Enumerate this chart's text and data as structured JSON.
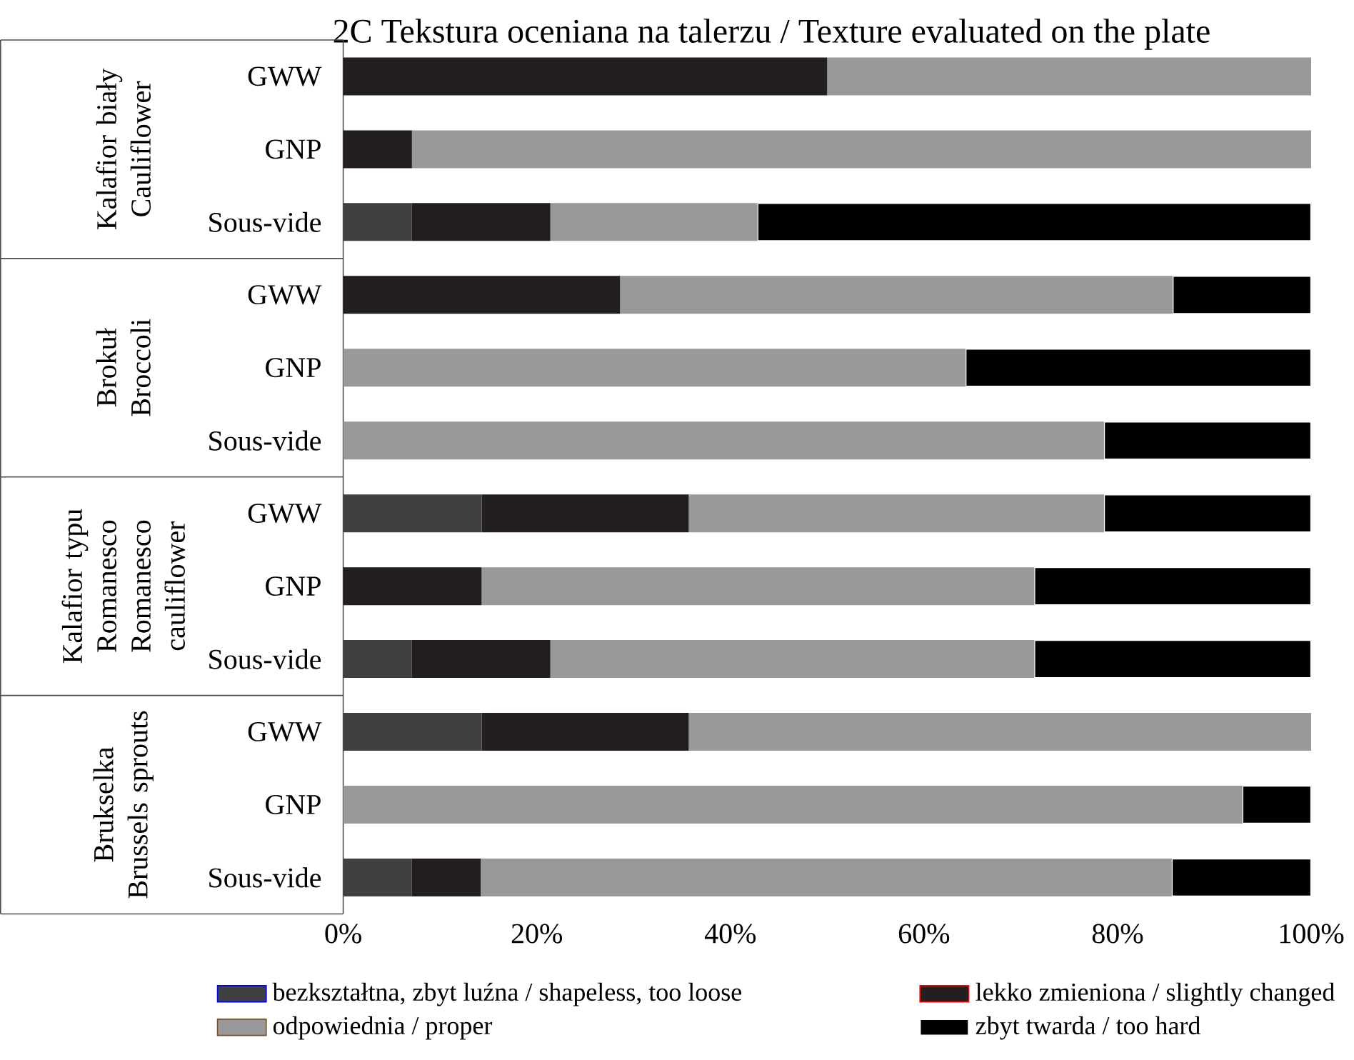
{
  "chart_data": {
    "type": "bar",
    "orientation": "horizontal",
    "stacked": true,
    "title": "2C Tekstura oceniana na talerzu / Texture evaluated on the plate",
    "categories": [
      "GWW",
      "GNP",
      "Sous-vide",
      "GWW",
      "GNP",
      "Sous-vide",
      "GWW",
      "GNP",
      "Sous-vide",
      "GWW",
      "GNP",
      "Sous-vide"
    ],
    "series": [
      {
        "name": "bezkształtna, zbyt luźna / shapeless, too loose",
        "color": "#404040",
        "values": [
          0,
          0,
          7.1,
          0,
          0,
          0,
          14.3,
          0,
          7.1,
          14.3,
          0,
          7.1
        ]
      },
      {
        "name": "lekko zmieniona / slightly changed",
        "color": "#231f20",
        "values": [
          50,
          7.1,
          14.3,
          28.6,
          0,
          0,
          21.4,
          14.3,
          14.3,
          21.4,
          0,
          7.1
        ]
      },
      {
        "name": "odpowiednia / proper",
        "color": "#999999",
        "values": [
          50,
          92.9,
          21.4,
          57.1,
          64.3,
          78.6,
          42.9,
          57.1,
          50,
          64.3,
          92.9,
          71.4
        ]
      },
      {
        "name": "zbyt twarda / too hard",
        "color": "#000000",
        "values": [
          0,
          0,
          57.2,
          14.3,
          35.7,
          21.4,
          21.4,
          28.6,
          28.6,
          0,
          7.1,
          14.4
        ]
      }
    ],
    "xlim": [
      0,
      100
    ],
    "xticks": [
      {
        "value": 0,
        "label": "0%"
      },
      {
        "value": 20,
        "label": "20%"
      },
      {
        "value": 40,
        "label": "40%"
      },
      {
        "value": 60,
        "label": "60%"
      },
      {
        "value": 80,
        "label": "80%"
      },
      {
        "value": 100,
        "label": "100%"
      }
    ],
    "annotations": [
      "Kalafior biały",
      "Cauliflower",
      "Brokuł",
      "Broccoli",
      "Kalafior typu Romanesco",
      "Romanesco cauliflower",
      "Brukselka",
      "Brussels sprouts"
    ],
    "legend": "bottom",
    "grid": false
  }
}
